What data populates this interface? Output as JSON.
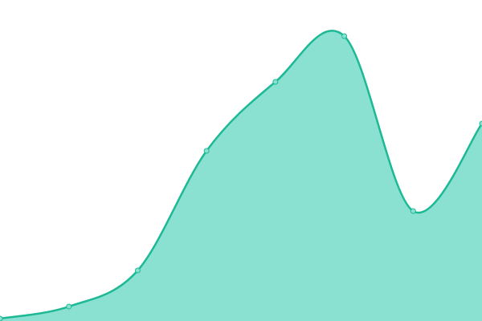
{
  "chart_data": {
    "type": "area",
    "categories": [
      null,
      null,
      null,
      null,
      null,
      null,
      null,
      null
    ],
    "values": [
      3,
      18,
      63,
      212,
      298,
      355,
      137,
      246
    ],
    "ylim": [
      0,
      400
    ],
    "color": "#1db995",
    "fill_color": "#8ae1d1",
    "marker_fill": "#8ae1d1",
    "smooth": true
  }
}
